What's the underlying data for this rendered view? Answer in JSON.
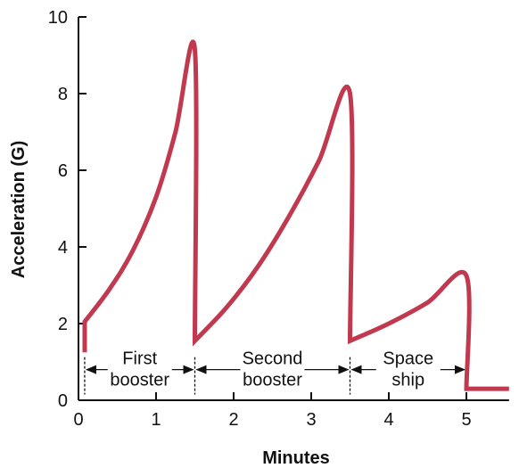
{
  "chart_data": {
    "type": "line",
    "xlabel": "Minutes",
    "ylabel": "Acceleration (G)",
    "xlim": [
      0,
      5.55
    ],
    "ylim": [
      0,
      10
    ],
    "xticks": [
      0,
      1,
      2,
      3,
      4,
      5
    ],
    "yticks": [
      0,
      2,
      4,
      6,
      8,
      10
    ],
    "grid": false,
    "line_color": "#c0394f",
    "series": [
      {
        "values": [
          {
            "x": 0.08,
            "y": 1.25
          },
          {
            "x": 0.08,
            "y": 2.05
          },
          {
            "x": 0.4,
            "y": 2.9
          },
          {
            "x": 0.7,
            "y": 3.9
          },
          {
            "x": 1.0,
            "y": 5.3
          },
          {
            "x": 1.25,
            "y": 7.0
          },
          {
            "x": 1.5,
            "y": 9.15
          },
          {
            "x": 1.5,
            "y": 1.55
          },
          {
            "x": 1.9,
            "y": 2.4
          },
          {
            "x": 2.3,
            "y": 3.45
          },
          {
            "x": 2.7,
            "y": 4.75
          },
          {
            "x": 3.1,
            "y": 6.25
          },
          {
            "x": 3.5,
            "y": 8.0
          },
          {
            "x": 3.5,
            "y": 1.55
          },
          {
            "x": 4.0,
            "y": 2.0
          },
          {
            "x": 4.5,
            "y": 2.55
          },
          {
            "x": 5.0,
            "y": 3.25
          },
          {
            "x": 5.0,
            "y": 0.3
          },
          {
            "x": 5.55,
            "y": 0.3
          }
        ]
      }
    ],
    "phases": [
      {
        "label_lines": [
          "First",
          "booster"
        ],
        "start": 0.08,
        "end": 1.5
      },
      {
        "label_lines": [
          "Second",
          "booster"
        ],
        "start": 1.5,
        "end": 3.5
      },
      {
        "label_lines": [
          "Space",
          "ship"
        ],
        "start": 3.5,
        "end": 5.0
      }
    ],
    "phase_arrow_y": 0.8
  }
}
